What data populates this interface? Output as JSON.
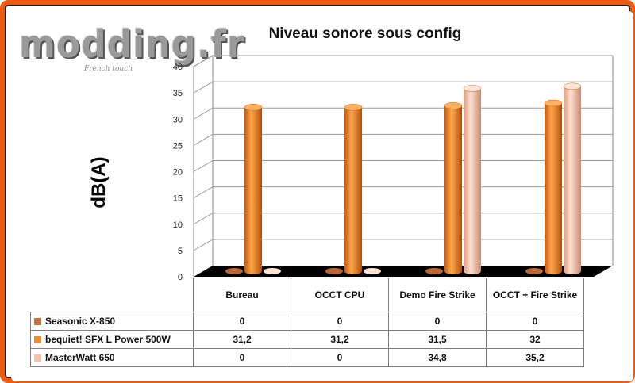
{
  "logo": {
    "text": "modding.fr",
    "subtitle": "French touch"
  },
  "chart_data": {
    "type": "bar",
    "title": "Niveau sonore sous config",
    "ylabel": "dB(A)",
    "xlabel": "",
    "ylim": [
      0,
      40
    ],
    "yticks": [
      0,
      5,
      10,
      15,
      20,
      25,
      30,
      35,
      40
    ],
    "categories": [
      "Bureau",
      "OCCT CPU",
      "Demo Fire Strike",
      "OCCT + Fire Strike"
    ],
    "series": [
      {
        "name": "Seasonic X-850",
        "values": [
          0,
          0,
          0,
          0
        ],
        "labels": [
          "0",
          "0",
          "0",
          "0"
        ],
        "color": "#c8703a"
      },
      {
        "name": "bequiet! SFX L Power 500W",
        "values": [
          31.2,
          31.2,
          31.5,
          32
        ],
        "labels": [
          "31,2",
          "31,2",
          "31,5",
          "32"
        ],
        "color": "#f08a30"
      },
      {
        "name": "MasterWatt 650",
        "values": [
          0,
          0,
          34.8,
          35.2
        ],
        "labels": [
          "0",
          "0",
          "34,8",
          "35,2"
        ],
        "color": "#f6c3aa"
      }
    ],
    "grid": true,
    "legend": "data-table"
  }
}
